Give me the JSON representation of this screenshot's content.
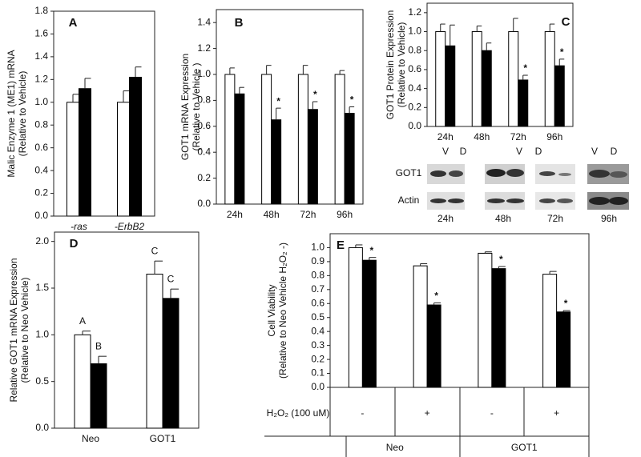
{
  "chart_data": [
    {
      "type": "bar",
      "label": "A",
      "ytitle": [
        "Malic Enzyme 1 (ME1) mRNA",
        "(Relative to Vehicle)"
      ],
      "categories": [
        "-ras",
        "-ErbB2"
      ],
      "series": [
        {
          "color": "#ffffff",
          "values": [
            1.0,
            1.0
          ],
          "errors": [
            0.07,
            0.1
          ]
        },
        {
          "color": "#000000",
          "values": [
            1.12,
            1.22
          ],
          "errors": [
            0.09,
            0.09
          ]
        }
      ],
      "ylim": [
        0,
        1.8
      ],
      "yticks": [
        {
          "value": 0,
          "label": "0.0"
        },
        0.2,
        0.4,
        0.6,
        0.8,
        {
          "value": 1,
          "label": "1.0"
        },
        1.2,
        1.4,
        1.6,
        1.8
      ]
    },
    {
      "type": "bar",
      "label": "B",
      "ytitle": [
        "GOT1 mRNA Expression",
        "(Relative to Vehicle )"
      ],
      "categories": [
        "24h",
        "48h",
        "72h",
        "96h"
      ],
      "series": [
        {
          "color": "#ffffff",
          "values": [
            1.0,
            1.0,
            1.0,
            1.0
          ],
          "errors": [
            0.05,
            0.07,
            0.07,
            0.03
          ]
        },
        {
          "color": "#000000",
          "values": [
            0.85,
            0.65,
            0.73,
            0.7
          ],
          "errors": [
            0.05,
            0.09,
            0.06,
            0.05
          ],
          "markers": [
            null,
            "*",
            "*",
            "*"
          ]
        }
      ],
      "ylim": [
        0,
        1.5
      ],
      "yticks": [
        {
          "value": 0,
          "label": "0.0"
        },
        0.2,
        0.4,
        0.6,
        0.8,
        {
          "value": 1,
          "label": "1.0"
        },
        1.2,
        1.4
      ]
    },
    {
      "type": "bar",
      "label": "C",
      "ytitle": [
        "GOT1 Protein Expression",
        "(Relative to Vehicle)"
      ],
      "categories": [
        "24h",
        "48h",
        "72h",
        "96h"
      ],
      "series": [
        {
          "color": "#ffffff",
          "values": [
            1.0,
            1.0,
            1.0,
            1.0
          ],
          "errors": [
            0.08,
            0.06,
            0.14,
            0.08
          ]
        },
        {
          "color": "#000000",
          "values": [
            0.85,
            0.8,
            0.49,
            0.64
          ],
          "errors": [
            0.22,
            0.08,
            0.05,
            0.07
          ],
          "markers": [
            null,
            null,
            "*",
            "*"
          ]
        }
      ],
      "ylim": [
        0,
        1.3
      ],
      "yticks": [
        {
          "value": 0,
          "label": "0.0"
        },
        0.2,
        0.4,
        0.6,
        0.8,
        {
          "value": 1,
          "label": "1.0"
        },
        1.2
      ],
      "blot": {
        "lanes": [
          "V",
          "D",
          "V",
          "D",
          "V",
          "D"
        ],
        "rows": [
          "GOT1",
          "Actin"
        ],
        "times": [
          "24h",
          "48h",
          "72h",
          "96h"
        ]
      }
    },
    {
      "type": "bar",
      "label": "D",
      "ytitle": [
        "Relative GOT1 mRNA Expression",
        "(Relative to Neo Vehicle)"
      ],
      "categories": [
        "Neo",
        "GOT1"
      ],
      "series": [
        {
          "color": "#ffffff",
          "values": [
            1.0,
            1.65
          ],
          "errors": [
            0.04,
            0.14
          ],
          "markers": [
            "A",
            "C"
          ]
        },
        {
          "color": "#000000",
          "values": [
            0.69,
            1.39
          ],
          "errors": [
            0.08,
            0.1
          ],
          "markers": [
            "B",
            "C"
          ]
        }
      ],
      "ylim": [
        0,
        2.1
      ],
      "yticks": [
        {
          "value": 0,
          "label": "0.0"
        },
        0.5,
        {
          "value": 1,
          "label": "1.0"
        },
        1.5,
        {
          "value": 2,
          "label": "2.0"
        }
      ]
    },
    {
      "type": "bar",
      "label": "E",
      "ytitle": [
        "Cell Viability",
        "(Relative to Neo Vehicle H₂O₂ -)"
      ],
      "row_label": "H₂O₂ (100 uM)",
      "categories": [
        "-",
        "+",
        "-",
        "+"
      ],
      "groups": [
        "Neo",
        "GOT1"
      ],
      "series": [
        {
          "color": "#ffffff",
          "values": [
            1.0,
            0.87,
            0.96,
            0.81
          ],
          "errors": [
            0.02,
            0.015,
            0.01,
            0.02
          ]
        },
        {
          "color": "#000000",
          "values": [
            0.91,
            0.59,
            0.85,
            0.54
          ],
          "errors": [
            0.02,
            0.015,
            0.015,
            0.01
          ],
          "markers": [
            "*",
            "*",
            "*",
            "*"
          ]
        }
      ],
      "ylim": [
        0,
        1.1
      ],
      "yticks": [
        {
          "value": 0,
          "label": "0.0"
        },
        0.1,
        0.2,
        0.3,
        0.4,
        0.5,
        0.6,
        0.7,
        0.8,
        0.9,
        {
          "value": 1,
          "label": "1.0"
        }
      ]
    }
  ]
}
